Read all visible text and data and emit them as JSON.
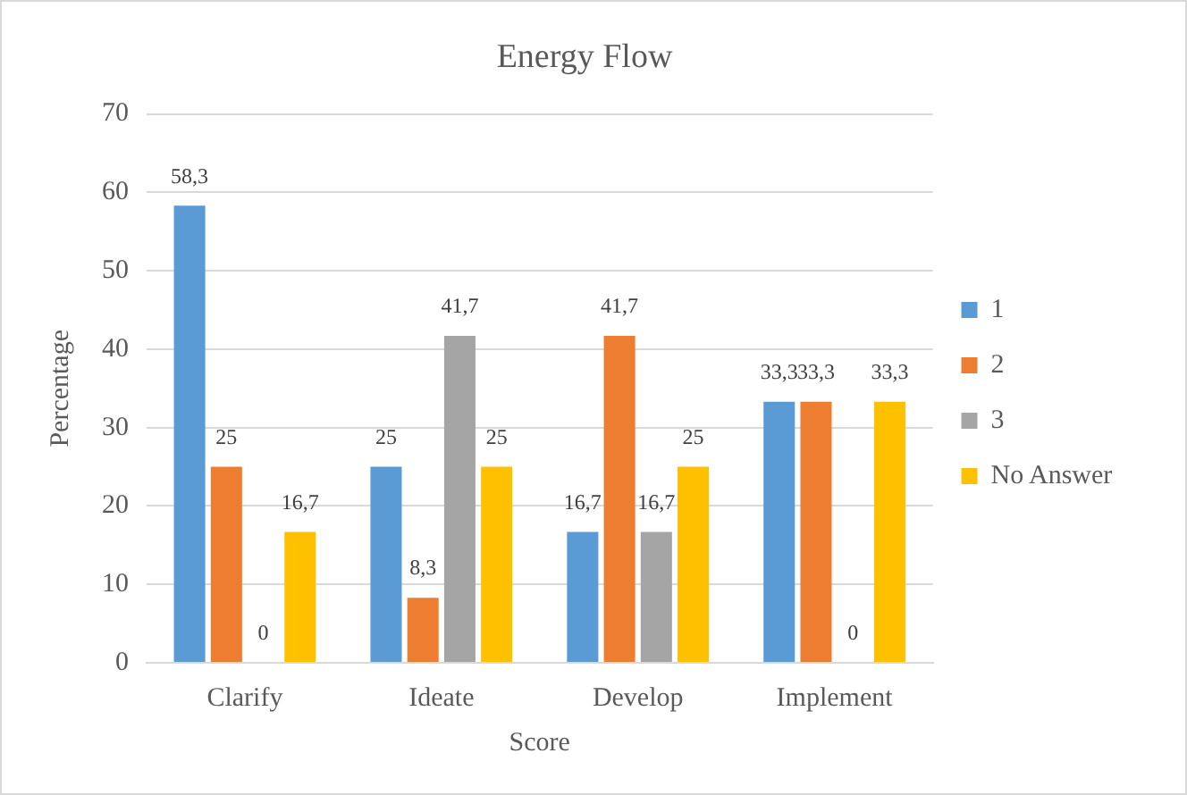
{
  "chart_data": {
    "type": "bar",
    "title": "Energy Flow",
    "xlabel": "Score",
    "ylabel": "Percentage",
    "categories": [
      "Clarify",
      "Ideate",
      "Develop",
      "Implement"
    ],
    "series": [
      {
        "name": "1",
        "color": "#5b9bd5",
        "values": [
          58.3,
          25,
          16.7,
          33.3
        ],
        "value_labels": [
          "58,3",
          "25",
          "16,7",
          "33,3"
        ]
      },
      {
        "name": "2",
        "color": "#ed7d31",
        "values": [
          25,
          8.3,
          41.7,
          33.3
        ],
        "value_labels": [
          "25",
          "8,3",
          "41,7",
          "33,3"
        ]
      },
      {
        "name": "3",
        "color": "#a5a5a5",
        "values": [
          0,
          41.7,
          16.7,
          0
        ],
        "value_labels": [
          "0",
          "41,7",
          "16,7",
          "0"
        ]
      },
      {
        "name": "No Answer",
        "color": "#ffc000",
        "values": [
          16.7,
          25,
          25,
          33.3
        ],
        "value_labels": [
          "16,7",
          "25",
          "25",
          "33,3"
        ]
      }
    ],
    "ylim": [
      0,
      70
    ],
    "yticks": [
      0,
      10,
      20,
      30,
      40,
      50,
      60,
      70
    ],
    "grid": "y",
    "legend": "right"
  }
}
